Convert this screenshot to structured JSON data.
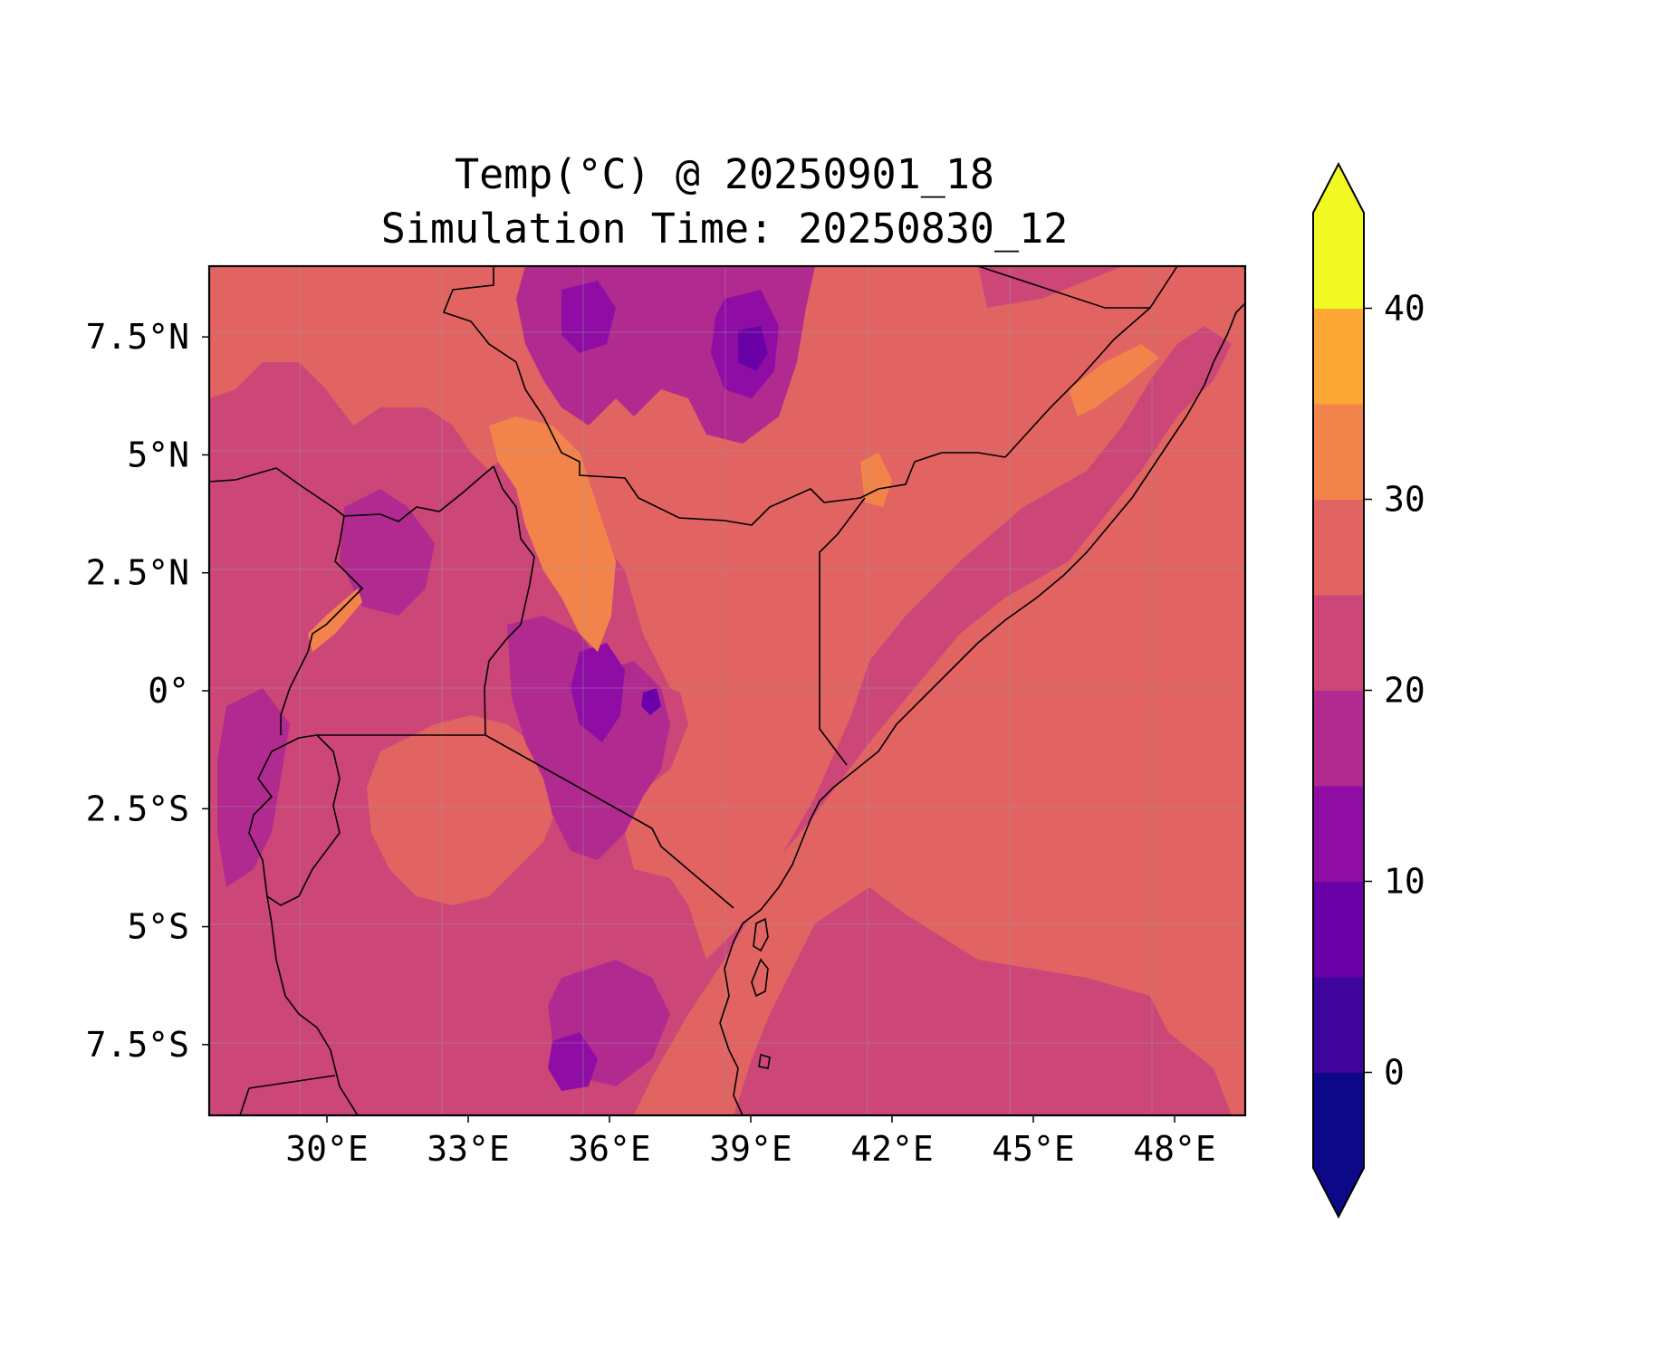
{
  "title": {
    "line1": "Temp(°C) @ 20250901_18",
    "line2": "Simulation Time: 20250830_12"
  },
  "map": {
    "variable": "Temp(°C)",
    "region": "East Africa",
    "lon_range": [
      27.5,
      49.5
    ],
    "lat_range": [
      -9,
      9
    ],
    "lon_ticks": [
      "30°E",
      "33°E",
      "36°E",
      "39°E",
      "42°E",
      "45°E",
      "48°E"
    ],
    "lat_ticks": [
      "7.5°N",
      "5°N",
      "2.5°N",
      "0°",
      "2.5°S",
      "5°S",
      "7.5°S"
    ],
    "gridlines": true,
    "features": [
      "country-borders",
      "coastline"
    ]
  },
  "colorbar": {
    "label": "",
    "extend": "both",
    "levels": [
      -5,
      0,
      5,
      10,
      15,
      20,
      25,
      30,
      35,
      40,
      45
    ],
    "tick_labels": [
      "0",
      "10",
      "20",
      "30",
      "40"
    ],
    "tick_values": [
      0,
      10,
      20,
      30,
      40
    ],
    "colors": [
      "#0d0887",
      "#3e049c",
      "#6a00a8",
      "#8f0da4",
      "#b12a90",
      "#cc4778",
      "#e16462",
      "#f2844b",
      "#fca636",
      "#f0f921",
      "#f0f921"
    ],
    "under_color": "#0d0887",
    "over_color": "#f0f921"
  },
  "colors": {
    "frame": "#000000",
    "border_line": "#000000",
    "grid": "#9a9a9a"
  }
}
